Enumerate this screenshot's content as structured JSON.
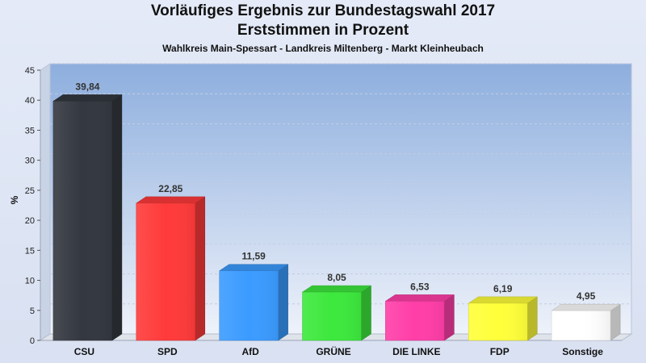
{
  "chart_data": {
    "type": "bar",
    "title": "Vorläufiges Ergebnis zur Bundestagswahl 2017",
    "subtitle": "Erststimmen in Prozent",
    "subsubtitle": "Wahlkreis Main-Spessart - Landkreis Miltenberg - Markt Kleinheubach",
    "xlabel": "",
    "ylabel": "%",
    "ylim": [
      0,
      45
    ],
    "yticks": [
      0,
      5,
      10,
      15,
      20,
      25,
      30,
      35,
      40,
      45
    ],
    "grid": true,
    "categories": [
      "CSU",
      "SPD",
      "AfD",
      "GRÜNE",
      "DIE LINKE",
      "FDP",
      "Sonstige"
    ],
    "values": [
      39.84,
      22.85,
      11.59,
      8.05,
      6.53,
      6.19,
      4.95
    ],
    "value_labels": [
      "39,84",
      "22,85",
      "11,59",
      "8,05",
      "6,53",
      "6,19",
      "4,95"
    ],
    "colors": [
      "#33373f",
      "#ff3a3a",
      "#3b9bff",
      "#3de83d",
      "#ff3ea8",
      "#ffff3a",
      "#ffffff"
    ]
  }
}
